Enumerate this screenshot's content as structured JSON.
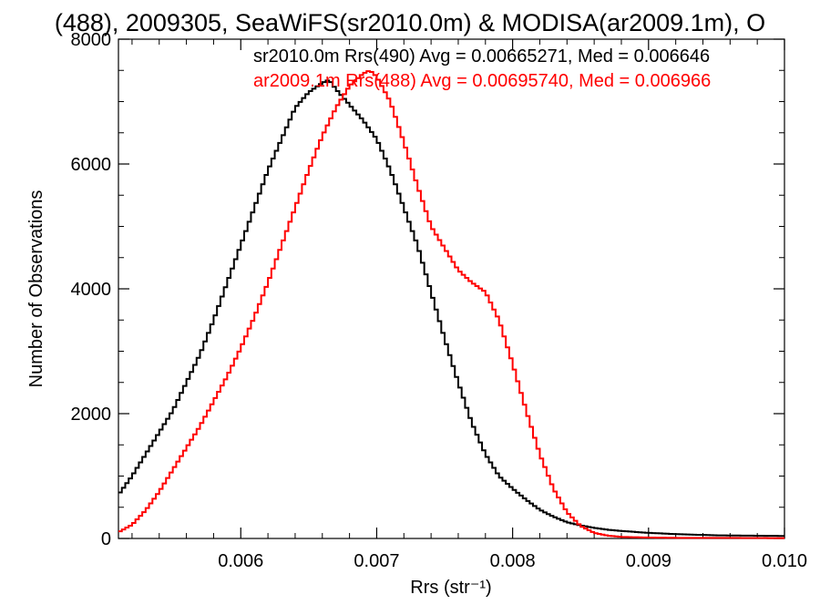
{
  "chart_data": {
    "type": "line",
    "title": "(488), 2009305, SeaWiFS(sr2010.0m) & MODISA(ar2009.1m), O",
    "xlabel": "Rrs (str⁻¹)",
    "ylabel": "Number of Observations",
    "xlim": [
      0.0051,
      0.01
    ],
    "ylim": [
      0,
      8000
    ],
    "xticks": [
      0.006,
      0.007,
      0.008,
      0.009,
      0.01
    ],
    "xtick_labels": [
      "0.006",
      "0.007",
      "0.008",
      "0.009",
      "0.010"
    ],
    "yticks": [
      0,
      2000,
      4000,
      6000,
      8000
    ],
    "ytick_labels": [
      "0",
      "2000",
      "4000",
      "6000",
      "8000"
    ],
    "grid": false,
    "series": [
      {
        "name": "sr2010.0m Rrs(490)",
        "label": "sr2010.0m Rrs(490) Avg = 0.00665271, Med = 0.006646",
        "color": "#000000",
        "x": [
          0.0051,
          0.0052,
          0.0053,
          0.0054,
          0.0055,
          0.0056,
          0.0057,
          0.0058,
          0.0059,
          0.006,
          0.0061,
          0.0062,
          0.0063,
          0.0064,
          0.0065,
          0.0066,
          0.00665,
          0.0067,
          0.0068,
          0.0069,
          0.007,
          0.0071,
          0.0072,
          0.0073,
          0.0074,
          0.0075,
          0.0076,
          0.0077,
          0.0078,
          0.0079,
          0.008,
          0.0081,
          0.0082,
          0.0083,
          0.0084,
          0.0085,
          0.0086,
          0.0087,
          0.0088,
          0.009,
          0.0092,
          0.0095,
          0.01
        ],
        "y": [
          700,
          1000,
          1350,
          1700,
          2050,
          2500,
          2950,
          3500,
          4100,
          4700,
          5300,
          5900,
          6400,
          6900,
          7150,
          7300,
          7350,
          7200,
          6950,
          6700,
          6400,
          5900,
          5300,
          4700,
          3950,
          3200,
          2500,
          1850,
          1350,
          1000,
          800,
          620,
          460,
          350,
          260,
          210,
          170,
          140,
          120,
          90,
          70,
          50,
          40
        ]
      },
      {
        "name": "ar2009.1m Rrs(488)",
        "label": "ar2009.1m Rrs(488) Avg = 0.00695740, Med = 0.006966",
        "color": "#ff0000",
        "x": [
          0.0051,
          0.0052,
          0.0053,
          0.0054,
          0.0055,
          0.0056,
          0.0057,
          0.0058,
          0.0059,
          0.006,
          0.0061,
          0.0062,
          0.0063,
          0.0064,
          0.0065,
          0.0066,
          0.0067,
          0.0068,
          0.0069,
          0.00695,
          0.007,
          0.0071,
          0.0072,
          0.0073,
          0.0074,
          0.0075,
          0.0076,
          0.0077,
          0.0078,
          0.0079,
          0.008,
          0.0081,
          0.0082,
          0.0083,
          0.0084,
          0.0085,
          0.0086,
          0.0087,
          0.0088,
          0.009,
          0.0092,
          0.0095,
          0.01
        ],
        "y": [
          100,
          220,
          450,
          750,
          1100,
          1450,
          1800,
          2200,
          2600,
          3050,
          3550,
          4100,
          4700,
          5300,
          5900,
          6450,
          6900,
          7250,
          7450,
          7500,
          7400,
          7000,
          6350,
          5650,
          5000,
          4650,
          4300,
          4100,
          3950,
          3500,
          2800,
          2050,
          1350,
          800,
          420,
          200,
          90,
          45,
          25,
          15,
          10,
          10,
          5
        ]
      }
    ]
  }
}
